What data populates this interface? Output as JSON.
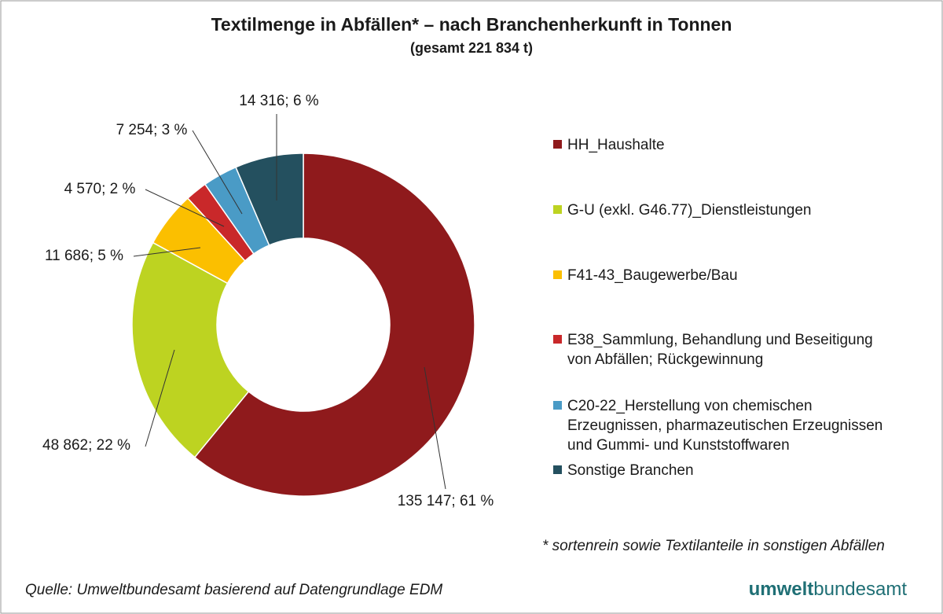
{
  "chart_data": {
    "type": "donut",
    "title": "Textilmenge in Abfällen* – nach Branchenherkunft in Tonnen",
    "subtitle": "(gesamt 221 834 t)",
    "categories": [
      "HH_Haushalte",
      "G-U (exkl. G46.77)_Dienstleistungen",
      "F41-43_Baugewerbe/Bau",
      "E38_Sammlung, Behandlung und Beseitigung von Abfällen; Rückgewinnung",
      "C20-22_Herstellung von chemischen Erzeugnissen, pharmazeutischen Erzeugnissen und Gummi- und Kunststoffwaren",
      "Sonstige Branchen"
    ],
    "values": [
      135147,
      48862,
      11686,
      4570,
      7254,
      14316
    ],
    "value_labels": [
      "135 147; 61 %",
      "48 862; 22 %",
      "11 686; 5 %",
      "4 570; 2 %",
      "7 254; 3 %",
      "14 316; 6 %"
    ],
    "colors": [
      "#8f1a1c",
      "#bdd321",
      "#fbbf00",
      "#c9282a",
      "#4a9bc6",
      "#24505f"
    ],
    "legend": "right",
    "footnote": "* sortenrein sowie Textilanteile in sonstigen Abfällen",
    "source": "Quelle: Umweltbundesamt basierend auf Datengrundlage EDM",
    "logo": [
      "umwelt",
      "bundesamt"
    ]
  }
}
